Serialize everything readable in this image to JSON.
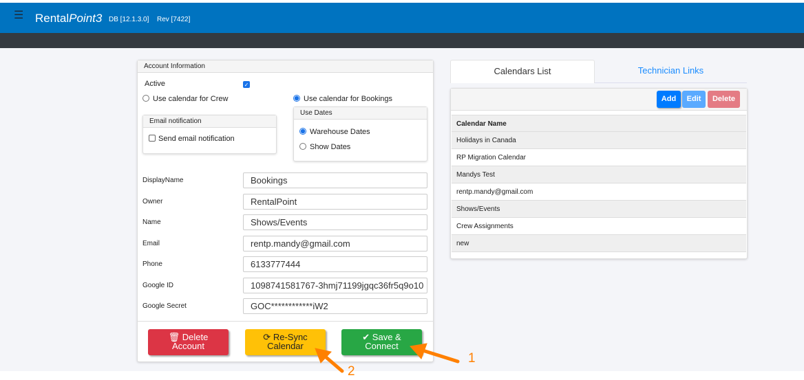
{
  "header": {
    "brand_plain": "Rental",
    "brand_italic": "Point3",
    "db": "DB [12.1.3.0]",
    "rev": "Rev [7422]",
    "menu_icon": "hamburger-icon",
    "color": "#0073c0"
  },
  "account": {
    "title": "Account Information",
    "active_label": "Active",
    "active_checked": true,
    "crew_label": "Use calendar for Crew",
    "crew_selected": false,
    "bookings_label": "Use calendar for Bookings",
    "bookings_selected": true,
    "email_notification": {
      "title": "Email notification",
      "send_label": "Send email notification",
      "checked": false
    },
    "use_dates": {
      "title": "Use Dates",
      "warehouse_label": "Warehouse Dates",
      "warehouse_selected": true,
      "show_label": "Show Dates",
      "show_selected": false
    },
    "fields": [
      {
        "label": "DisplayName",
        "value": "Bookings"
      },
      {
        "label": "Owner",
        "value": "RentalPoint"
      },
      {
        "label": "Name",
        "value": "Shows/Events"
      },
      {
        "label": "Email",
        "value": "rentp.mandy@gmail.com"
      },
      {
        "label": "Phone",
        "value": "6133777444"
      },
      {
        "label": "Google ID",
        "value": "1098741581767-3hmj71199jgqc36fr5q9o10"
      },
      {
        "label": "Google Secret",
        "value": "GOC************iW2"
      }
    ],
    "buttons": {
      "delete_line1": "Delete",
      "delete_line2": "Account",
      "resync_line1": "Re-Sync",
      "resync_line2": "Calendar",
      "save_line1": "Save &",
      "save_line2": "Connect"
    }
  },
  "tabs": [
    {
      "label": "Calendars List",
      "active": true
    },
    {
      "label": "Technician Links",
      "active": false
    }
  ],
  "calendars": {
    "add": "Add",
    "edit": "Edit",
    "delete": "Delete",
    "column": "Calendar Name",
    "rows": [
      "Holidays in Canada",
      "RP Migration Calendar",
      "Mandys Test",
      "rentp.mandy@gmail.com",
      "Shows/Events",
      "Crew Assignments",
      "new"
    ]
  },
  "annotations": {
    "arrow1": "1",
    "arrow2": "2",
    "color": "#ff8000"
  }
}
